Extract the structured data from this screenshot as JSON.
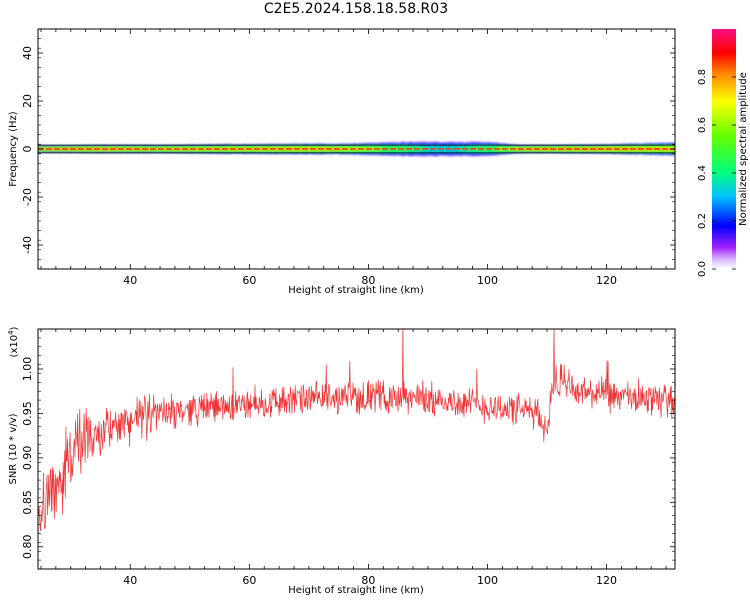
{
  "title": "C2E5.2024.158.18.58.R03",
  "chart_data": [
    {
      "type": "heatmap",
      "xlabel": "Height of straight line (km)",
      "ylabel": "Frequency (Hz)",
      "xlim": [
        24.5,
        131.5
      ],
      "ylim": [
        -50,
        50
      ],
      "xticks": [
        "40",
        "60",
        "80",
        "100",
        "120"
      ],
      "xtick_values": [
        40,
        60,
        80,
        100,
        120
      ],
      "yticks": [
        "-40",
        "-20",
        "0",
        "20",
        "40"
      ],
      "ytick_values": [
        -40,
        -20,
        0,
        20,
        40
      ],
      "band": {
        "heights_km": [
          25,
          35,
          45,
          55,
          65,
          75,
          85,
          90,
          95,
          100,
          105,
          110,
          120,
          131
        ],
        "halfwidth_hz": [
          1.2,
          1.5,
          1.5,
          1.8,
          2.0,
          2.0,
          2.8,
          3.0,
          3.0,
          2.8,
          1.6,
          1.5,
          1.8,
          2.5
        ],
        "peak_amplitude": [
          0.85,
          0.85,
          0.8,
          0.8,
          0.8,
          0.8,
          0.6,
          0.5,
          0.5,
          0.6,
          0.8,
          0.85,
          0.85,
          0.8
        ]
      },
      "colorbar": {
        "label": "Normalized spectral amplitude",
        "range": [
          0,
          1
        ],
        "ticks": [
          "0.0",
          "0.2",
          "0.4",
          "0.6",
          "0.8"
        ],
        "tick_values": [
          0,
          0.2,
          0.4,
          0.6,
          0.8
        ]
      }
    },
    {
      "type": "line",
      "xlabel": "Height of straight line (km)",
      "ylabel": "SNR (10 * v/v)",
      "yscale_label": "(x10",
      "yscale_exp": "4",
      "xlim": [
        24.5,
        131.5
      ],
      "ylim": [
        0.775,
        1.045
      ],
      "xticks": [
        "40",
        "60",
        "80",
        "100",
        "120"
      ],
      "xtick_values": [
        40,
        60,
        80,
        100,
        120
      ],
      "yticks": [
        "0.80",
        "0.85",
        "0.90",
        "0.95",
        "1.00"
      ],
      "ytick_values": [
        0.8,
        0.85,
        0.9,
        0.95,
        1.0
      ],
      "color": "#ee3333",
      "trend": {
        "x": [
          24.5,
          26,
          28,
          30,
          33,
          36,
          40,
          45,
          50,
          55,
          60,
          65,
          70,
          75,
          80,
          85,
          90,
          95,
          100,
          105,
          108,
          110,
          111,
          112,
          115,
          120,
          125,
          131.5
        ],
        "y": [
          0.845,
          0.855,
          0.875,
          0.905,
          0.92,
          0.93,
          0.942,
          0.95,
          0.955,
          0.958,
          0.96,
          0.964,
          0.966,
          0.968,
          0.97,
          0.968,
          0.966,
          0.962,
          0.958,
          0.954,
          0.952,
          0.93,
          0.99,
          0.985,
          0.975,
          0.97,
          0.966,
          0.965
        ]
      }
    }
  ]
}
